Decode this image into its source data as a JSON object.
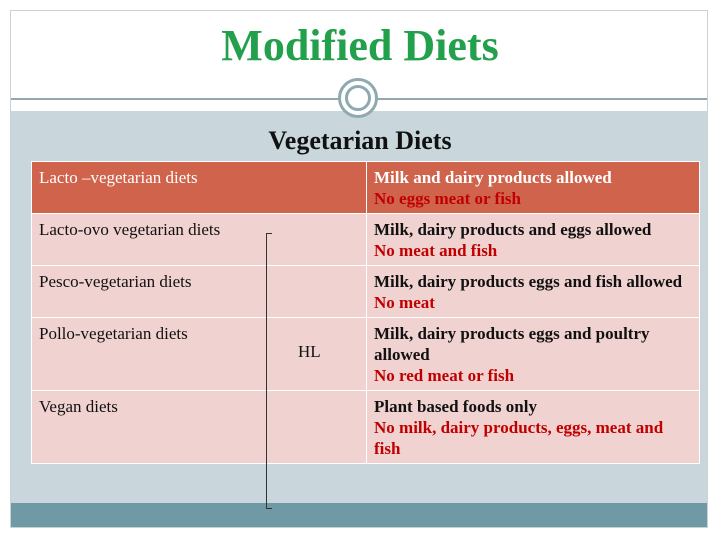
{
  "slide": {
    "title": "Modified Diets",
    "subtitle": "Vegetarian Diets",
    "annotation": "HL"
  },
  "table": {
    "rows": [
      {
        "diet": "Lacto –vegetarian diets",
        "allowed": "Milk and dairy products allowed",
        "restricted": "No eggs meat or fish"
      },
      {
        "diet": "Lacto-ovo vegetarian diets",
        "allowed": "Milk, dairy products and eggs allowed",
        "restricted": "No meat and fish"
      },
      {
        "diet": "Pesco-vegetarian diets",
        "allowed": "Milk, dairy products eggs and fish allowed",
        "restricted": "No meat"
      },
      {
        "diet": "Pollo-vegetarian diets",
        "allowed": "Milk, dairy products eggs and poultry allowed",
        "restricted": "No red meat or fish"
      },
      {
        "diet": "Vegan diets",
        "allowed": "Plant based foods only",
        "restricted": "No milk, dairy products, eggs, meat and fish"
      }
    ]
  },
  "colors": {
    "title": "#22a04b",
    "header_row": "#cf634b",
    "body_row": "#f0d2d0",
    "restricted_text": "#c00000",
    "band": "#c9d7dc"
  }
}
